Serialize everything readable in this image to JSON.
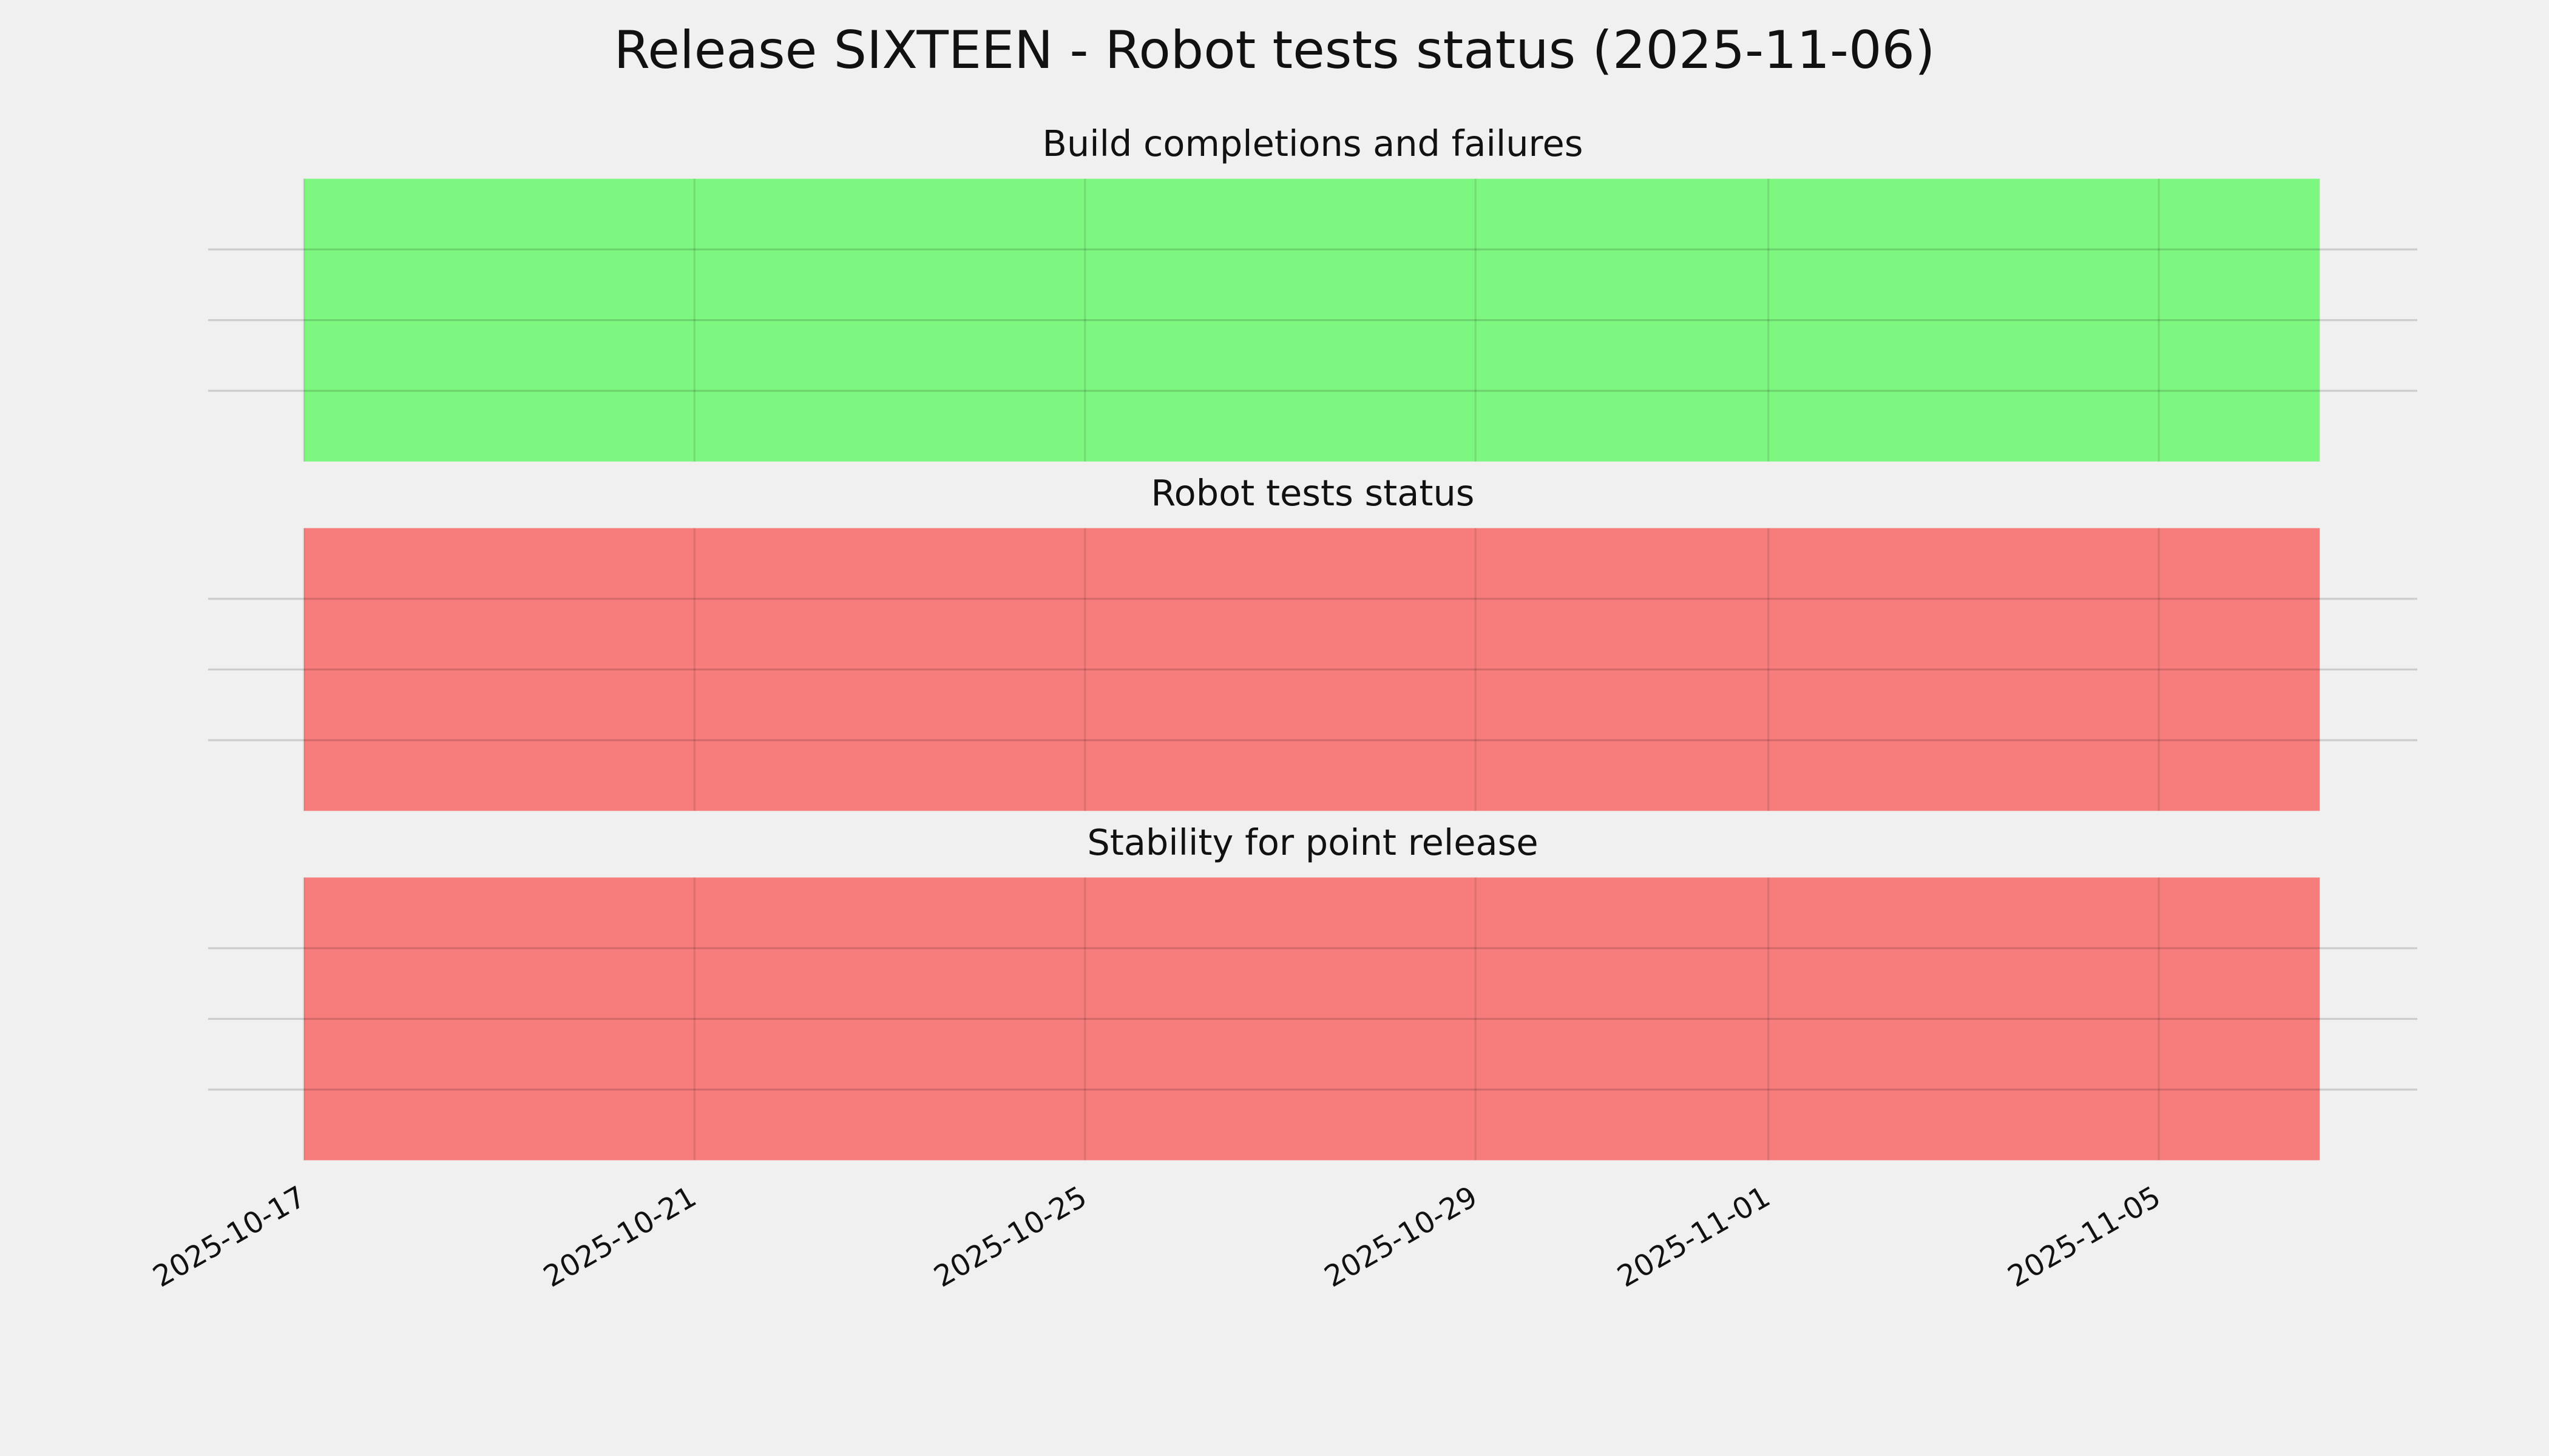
{
  "title": "Release SIXTEEN - Robot tests status (2025-11-06)",
  "chart_data": [
    {
      "type": "span",
      "title": "Build completions and failures",
      "spans": [
        {
          "start": "2025-10-17",
          "end": "2025-11-06T15:34:00Z",
          "color": "#77f77a"
        }
      ],
      "xlim": [
        "2025-10-16T00:25:00Z",
        "2025-11-07T15:33:00Z"
      ],
      "xticks": [
        "2025-10-17",
        "2025-10-21",
        "2025-10-25",
        "2025-10-29",
        "2025-11-01",
        "2025-11-05"
      ],
      "ylim": [
        0,
        1
      ],
      "yticks": [
        0.25,
        0.5,
        0.75
      ],
      "grid": true
    },
    {
      "type": "span",
      "title": "Robot tests status",
      "spans": [
        {
          "start": "2025-10-17",
          "end": "2025-11-06T15:34:00Z",
          "color": "#f77676"
        }
      ],
      "xlim": [
        "2025-10-16T00:25:00Z",
        "2025-11-07T15:33:00Z"
      ],
      "xticks": [
        "2025-10-17",
        "2025-10-21",
        "2025-10-25",
        "2025-10-29",
        "2025-11-01",
        "2025-11-05"
      ],
      "ylim": [
        0,
        1
      ],
      "yticks": [
        0.25,
        0.5,
        0.75
      ],
      "grid": true
    },
    {
      "type": "span",
      "title": "Stability for point release",
      "spans": [
        {
          "start": "2025-10-17",
          "end": "2025-11-06T15:34:00Z",
          "color": "#f77676"
        }
      ],
      "xlim": [
        "2025-10-16T00:25:00Z",
        "2025-11-07T15:33:00Z"
      ],
      "xticks": [
        "2025-10-17",
        "2025-10-21",
        "2025-10-25",
        "2025-10-29",
        "2025-11-01",
        "2025-11-05"
      ],
      "ylim": [
        0,
        1
      ],
      "yticks": [
        0.25,
        0.5,
        0.75
      ],
      "grid": true
    }
  ]
}
